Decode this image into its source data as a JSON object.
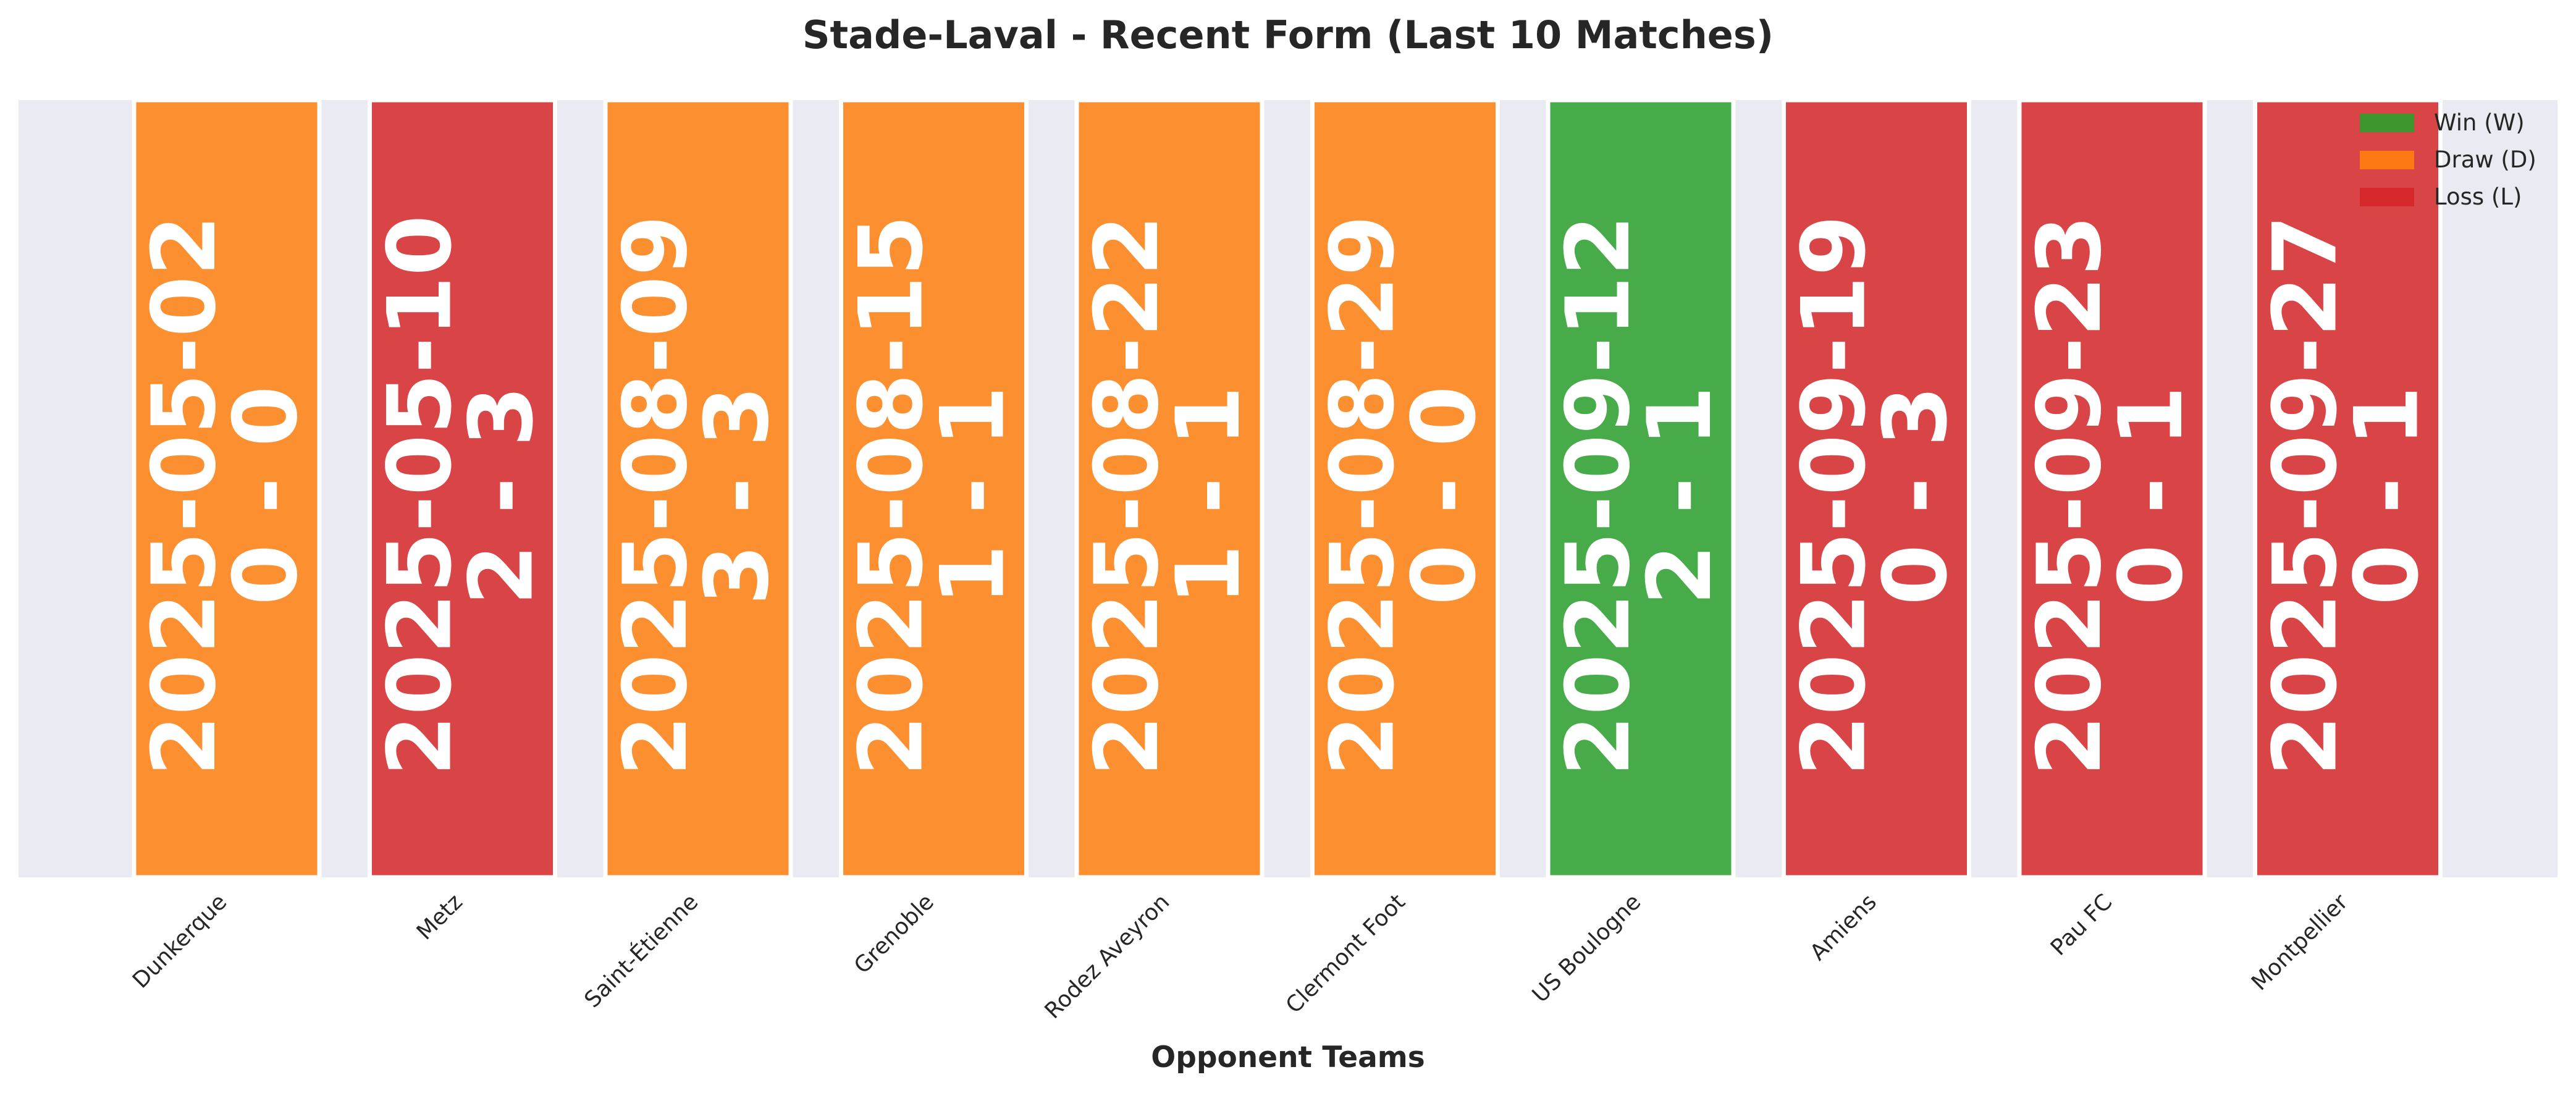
{
  "chart_data": {
    "type": "bar",
    "title": "Stade-Laval - Recent Form (Last 10 Matches)",
    "xlabel": "Opponent Teams",
    "ylabel": "",
    "categories": [
      "Dunkerque",
      "Metz",
      "Saint-Étienne",
      "Grenoble",
      "Rodez Aveyron",
      "Clermont Foot",
      "US Boulogne",
      "Amiens",
      "Pau FC",
      "Montpellier"
    ],
    "dates": [
      "2025-05-02",
      "2025-05-10",
      "2025-08-09",
      "2025-08-15",
      "2025-08-22",
      "2025-08-29",
      "2025-09-12",
      "2025-09-19",
      "2025-09-23",
      "2025-09-27"
    ],
    "scores": [
      "0 - 0",
      "2 - 3",
      "3 - 3",
      "1 - 1",
      "1 - 1",
      "0 - 0",
      "2 - 1",
      "0 - 3",
      "0 - 1",
      "0 - 1"
    ],
    "results": [
      "D",
      "L",
      "D",
      "D",
      "D",
      "D",
      "W",
      "L",
      "L",
      "L"
    ],
    "values": [
      1,
      1,
      1,
      1,
      1,
      1,
      1,
      1,
      1,
      1
    ],
    "ylim": [
      0,
      1
    ],
    "grid": false,
    "legend": {
      "placement": "top-right",
      "entries": [
        {
          "key": "W",
          "label": "Win (W)",
          "color": "#2ca02c"
        },
        {
          "key": "D",
          "label": "Draw (D)",
          "color": "#ff7f0e"
        },
        {
          "key": "L",
          "label": "Loss (L)",
          "color": "#d62728"
        }
      ]
    },
    "colors": {
      "background": "#eaeaf2",
      "bar_label": "#ffffff",
      "text": "#262626"
    }
  }
}
